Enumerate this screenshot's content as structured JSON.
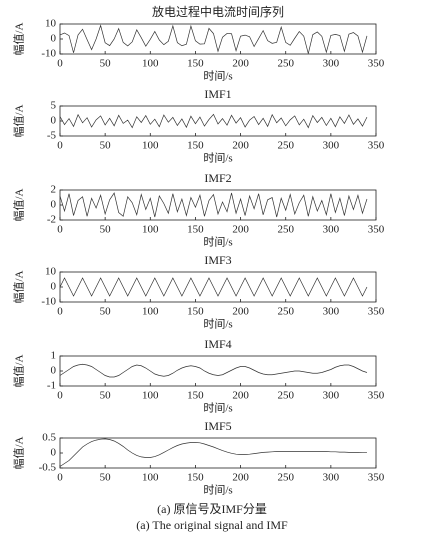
{
  "chart_data": [
    {
      "type": "line",
      "title": "放电过程中电流时间序列",
      "xlabel": "时间/s",
      "ylabel": "幅值/A",
      "color": "#333333",
      "x": [
        0,
        5,
        10,
        15,
        20,
        25,
        30,
        35,
        40,
        45,
        50,
        55,
        60,
        65,
        70,
        75,
        80,
        85,
        90,
        95,
        100,
        105,
        110,
        115,
        120,
        125,
        130,
        135,
        140,
        145,
        150,
        155,
        160,
        165,
        170,
        175,
        180,
        185,
        190,
        195,
        200,
        205,
        210,
        215,
        220,
        225,
        230,
        235,
        240,
        245,
        250,
        255,
        260,
        265,
        270,
        275,
        280,
        285,
        290,
        295,
        300,
        305,
        310,
        315,
        320,
        325,
        330,
        335,
        340
      ],
      "values": [
        2.7,
        4.0,
        2.3,
        -9.2,
        2.7,
        6.5,
        -0.4,
        -7.1,
        0,
        9.0,
        -2.5,
        -4.4,
        0,
        6.9,
        -2.3,
        -4.6,
        -1.9,
        6.1,
        0.9,
        -4.8,
        -0.2,
        5.0,
        -0.7,
        -3.8,
        -1.5,
        8.7,
        -2.4,
        -4.5,
        -3.5,
        8.6,
        -1.2,
        -3.4,
        -3.2,
        7.1,
        3.6,
        -8.2,
        1.2,
        3.7,
        3.5,
        -7.8,
        1.9,
        2.6,
        1.5,
        -5.0,
        0.3,
        5.6,
        -1.1,
        -2.9,
        -2.2,
        7.9,
        -2.3,
        -4.2,
        0.5,
        5.0,
        1.9,
        -9.7,
        2.9,
        4.7,
        1.8,
        -8.8,
        2.4,
        3.1,
        2.3,
        -8.2,
        3.2,
        4.3,
        2.0,
        -8.8,
        2.1
      ],
      "xlim": [
        0,
        350
      ],
      "xticks": [
        0,
        50,
        100,
        150,
        200,
        250,
        300,
        350
      ],
      "ylim": [
        -10,
        10
      ],
      "yticks": [
        -10,
        0,
        10
      ]
    },
    {
      "type": "line",
      "title": "IMF1",
      "xlabel": "时间/s",
      "ylabel": "幅值/A",
      "color": "#333333",
      "x": [
        0,
        5,
        10,
        15,
        20,
        25,
        30,
        35,
        40,
        45,
        50,
        55,
        60,
        65,
        70,
        75,
        80,
        85,
        90,
        95,
        100,
        105,
        110,
        115,
        120,
        125,
        130,
        135,
        140,
        145,
        150,
        155,
        160,
        165,
        170,
        175,
        180,
        185,
        190,
        195,
        200,
        205,
        210,
        215,
        220,
        225,
        230,
        235,
        240,
        245,
        250,
        255,
        260,
        265,
        270,
        275,
        280,
        285,
        290,
        295,
        300,
        305,
        310,
        315,
        320,
        325,
        330,
        335,
        340
      ],
      "values": [
        1.5,
        -1.2,
        0.8,
        -1.8,
        2.1,
        -0.6,
        1.1,
        -2.0,
        0.4,
        1.7,
        -1.3,
        0.9,
        -1.6,
        1.9,
        -0.8,
        0.3,
        -2.2,
        1.4,
        -0.5,
        1.8,
        -1.1,
        0.6,
        -1.9,
        2.0,
        -0.4,
        1.2,
        -1.5,
        0.7,
        -2.1,
        1.6,
        -0.9,
        1.3,
        -1.7,
        0.5,
        2.2,
        -1.0,
        0.8,
        -1.4,
        1.9,
        -0.7,
        1.1,
        -2.0,
        0.3,
        1.5,
        -1.2,
        0.9,
        -1.8,
        2.1,
        -0.6,
        1.0,
        -1.6,
        0.4,
        1.7,
        -1.3,
        0.6,
        -2.2,
        1.8,
        -0.5,
        1.2,
        -1.5,
        0.9,
        -1.9,
        1.4,
        -0.8,
        2.0,
        -1.1,
        0.7,
        -1.7,
        1.3
      ],
      "xlim": [
        0,
        350
      ],
      "xticks": [
        0,
        50,
        100,
        150,
        200,
        250,
        300,
        350
      ],
      "ylim": [
        -5,
        5
      ],
      "yticks": [
        -5,
        0,
        5
      ]
    },
    {
      "type": "line",
      "title": "IMF2",
      "xlabel": "时间/s",
      "ylabel": "幅值/A",
      "color": "#333333",
      "x": [
        0,
        5,
        10,
        15,
        20,
        25,
        30,
        35,
        40,
        45,
        50,
        55,
        60,
        65,
        70,
        75,
        80,
        85,
        90,
        95,
        100,
        105,
        110,
        115,
        120,
        125,
        130,
        135,
        140,
        145,
        150,
        155,
        160,
        165,
        170,
        175,
        180,
        185,
        190,
        195,
        200,
        205,
        210,
        215,
        220,
        225,
        230,
        235,
        240,
        245,
        250,
        255,
        260,
        265,
        270,
        275,
        280,
        285,
        290,
        295,
        300,
        305,
        310,
        315,
        320,
        325,
        330,
        335,
        340
      ],
      "values": [
        1.2,
        -0.8,
        1.5,
        -1.4,
        0.6,
        1.1,
        -1.5,
        0.9,
        -0.4,
        1.3,
        -1.2,
        0.7,
        1.6,
        -1.0,
        -1.5,
        1.1,
        0.3,
        -1.3,
        1.4,
        -0.6,
        0.9,
        -1.6,
        1.2,
        0.2,
        -1.1,
        1.5,
        -0.9,
        0.8,
        -1.4,
        1.0,
        -0.3,
        1.3,
        -1.5,
        0.6,
        1.4,
        -1.2,
        0.4,
        -0.9,
        1.6,
        -1.1,
        0.8,
        -1.4,
        1.2,
        -0.5,
        1.5,
        -1.3,
        0.7,
        1.0,
        -1.6,
        0.9,
        -0.7,
        1.4,
        -1.2,
        0.3,
        1.3,
        -1.5,
        1.1,
        -0.8,
        0.6,
        -1.3,
        1.5,
        -1.0,
        0.9,
        -1.4,
        1.2,
        -0.6,
        1.3,
        -1.1,
        0.8
      ],
      "xlim": [
        0,
        350
      ],
      "xticks": [
        0,
        50,
        100,
        150,
        200,
        250,
        300,
        350
      ],
      "ylim": [
        -2,
        2
      ],
      "yticks": [
        -2,
        0,
        2
      ]
    },
    {
      "type": "line",
      "title": "IMF3",
      "xlabel": "时间/s",
      "ylabel": "幅值/A",
      "color": "#333333",
      "x": [
        0,
        5,
        10,
        15,
        20,
        25,
        30,
        35,
        40,
        45,
        50,
        55,
        60,
        65,
        70,
        75,
        80,
        85,
        90,
        95,
        100,
        105,
        110,
        115,
        120,
        125,
        130,
        135,
        140,
        145,
        150,
        155,
        160,
        165,
        170,
        175,
        180,
        185,
        190,
        195,
        200,
        205,
        210,
        215,
        220,
        225,
        230,
        235,
        240,
        245,
        250,
        255,
        260,
        265,
        270,
        275,
        280,
        285,
        290,
        295,
        300,
        305,
        310,
        315,
        320,
        325,
        330,
        335,
        340
      ],
      "values": [
        0,
        6,
        0,
        -6,
        0,
        6,
        0,
        -6,
        0,
        6,
        0,
        -6,
        0,
        6,
        0,
        -6,
        0,
        6,
        0,
        -6,
        0,
        6,
        0,
        -6,
        0,
        6,
        0,
        -6,
        0,
        6,
        0,
        -6,
        0,
        6,
        0,
        -6,
        0,
        6,
        0,
        -6,
        0,
        6,
        0,
        -6,
        0,
        6,
        0,
        -6,
        0,
        6,
        0,
        -6,
        0,
        6,
        0,
        -6,
        0,
        6,
        0,
        -6,
        0,
        6,
        0,
        -6,
        0,
        6,
        0,
        -6,
        0
      ],
      "xlim": [
        0,
        350
      ],
      "xticks": [
        0,
        50,
        100,
        150,
        200,
        250,
        300,
        350
      ],
      "ylim": [
        -10,
        10
      ],
      "yticks": [
        -10,
        0,
        10
      ]
    },
    {
      "type": "line",
      "title": "IMF4",
      "xlabel": "时间/s",
      "ylabel": "幅值/A",
      "color": "#333333",
      "x": [
        0,
        5,
        10,
        15,
        20,
        25,
        30,
        35,
        40,
        45,
        50,
        55,
        60,
        65,
        70,
        75,
        80,
        85,
        90,
        95,
        100,
        105,
        110,
        115,
        120,
        125,
        130,
        135,
        140,
        145,
        150,
        155,
        160,
        165,
        170,
        175,
        180,
        185,
        190,
        195,
        200,
        205,
        210,
        215,
        220,
        225,
        230,
        235,
        240,
        245,
        250,
        255,
        260,
        265,
        270,
        275,
        280,
        285,
        290,
        295,
        300,
        305,
        310,
        315,
        320,
        325,
        330,
        335,
        340
      ],
      "values": [
        -0.3,
        -0.1,
        0.1,
        0.3,
        0.4,
        0.45,
        0.4,
        0.3,
        0.1,
        -0.1,
        -0.3,
        -0.4,
        -0.4,
        -0.3,
        -0.1,
        0.1,
        0.3,
        0.4,
        0.35,
        0.2,
        0,
        -0.2,
        -0.3,
        -0.35,
        -0.3,
        -0.15,
        0.05,
        0.2,
        0.3,
        0.35,
        0.3,
        0.2,
        0,
        -0.15,
        -0.25,
        -0.3,
        -0.25,
        -0.1,
        0.05,
        0.2,
        0.3,
        0.3,
        0.2,
        0.05,
        -0.1,
        -0.2,
        -0.25,
        -0.25,
        -0.2,
        -0.15,
        -0.1,
        -0.05,
        0,
        0,
        -0.05,
        -0.1,
        -0.15,
        -0.15,
        -0.1,
        0,
        0.1,
        0.25,
        0.35,
        0.4,
        0.4,
        0.3,
        0.15,
        0,
        -0.1
      ],
      "xlim": [
        0,
        350
      ],
      "xticks": [
        0,
        50,
        100,
        150,
        200,
        250,
        300,
        350
      ],
      "ylim": [
        -1,
        1
      ],
      "yticks": [
        -1,
        0,
        1
      ]
    },
    {
      "type": "line",
      "title": "IMF5",
      "xlabel": "时间/s",
      "ylabel": "幅值/A",
      "color": "#333333",
      "x": [
        0,
        5,
        10,
        15,
        20,
        25,
        30,
        35,
        40,
        45,
        50,
        55,
        60,
        65,
        70,
        75,
        80,
        85,
        90,
        95,
        100,
        105,
        110,
        115,
        120,
        125,
        130,
        135,
        140,
        145,
        150,
        155,
        160,
        165,
        170,
        175,
        180,
        185,
        190,
        195,
        200,
        205,
        210,
        215,
        220,
        225,
        230,
        235,
        240,
        245,
        250,
        255,
        260,
        265,
        270,
        275,
        280,
        285,
        290,
        295,
        300,
        305,
        310,
        315,
        320,
        325,
        330,
        335,
        340
      ],
      "values": [
        -0.45,
        -0.35,
        -0.25,
        -0.1,
        0.05,
        0.2,
        0.3,
        0.38,
        0.43,
        0.46,
        0.47,
        0.45,
        0.4,
        0.32,
        0.22,
        0.1,
        0,
        -0.08,
        -0.13,
        -0.15,
        -0.15,
        -0.12,
        -0.06,
        0.02,
        0.1,
        0.18,
        0.25,
        0.3,
        0.33,
        0.35,
        0.35,
        0.34,
        0.3,
        0.25,
        0.2,
        0.14,
        0.08,
        0.03,
        -0.01,
        -0.04,
        -0.05,
        -0.05,
        -0.04,
        -0.02,
        0,
        0.02,
        0.03,
        0.04,
        0.05,
        0.05,
        0.05,
        0.05,
        0.05,
        0.05,
        0.05,
        0.05,
        0.05,
        0.05,
        0.05,
        0.05,
        0.04,
        0.04,
        0.03,
        0.03,
        0.02,
        0.02,
        0.02,
        0.01,
        0.01
      ],
      "xlim": [
        0,
        350
      ],
      "xticks": [
        0,
        50,
        100,
        150,
        200,
        250,
        300,
        350
      ],
      "ylim": [
        -0.5,
        0.5
      ],
      "yticks": [
        -0.5,
        0,
        0.5
      ]
    }
  ],
  "caption": {
    "zh": "(a) 原信号及IMF分量",
    "en": "(a) The original signal and IMF"
  }
}
